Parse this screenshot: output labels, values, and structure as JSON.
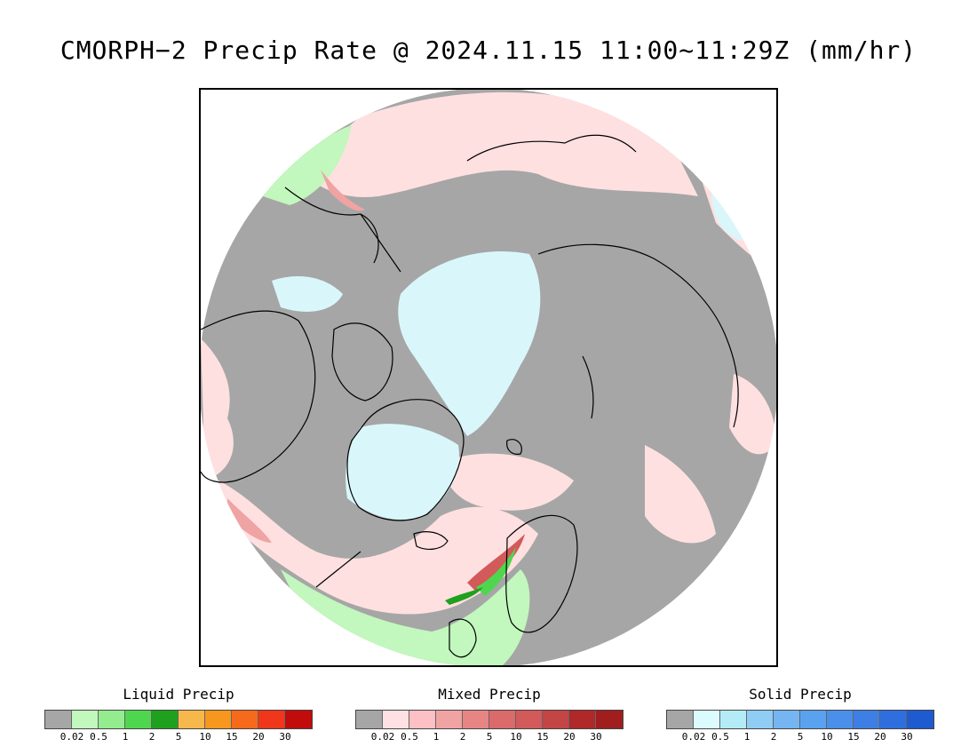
{
  "title": "CMORPH−2 Precip Rate @ 2024.11.15 11:00~11:29Z (mm/hr)",
  "map": {
    "projection": "polar stereographic (north)",
    "background_color": "#a6a6a6",
    "coastline_color": "#000000",
    "region_colors": {
      "light_mixed": "#ffe0e0",
      "light_solid": "#d9f7fb",
      "light_liquid": "#c2f7bd",
      "mid_mixed": "#f0a3a3",
      "strong_mixed": "#d25a5a",
      "mid_liquid": "#4fd64f",
      "strong_liquid": "#1fa11f"
    }
  },
  "legends": [
    {
      "title": "Liquid Precip",
      "colors": [
        "#a6a6a6",
        "#c2f7bd",
        "#93ec8e",
        "#4fd64f",
        "#1fa11f",
        "#f7b84b",
        "#f7971d",
        "#f76a1b",
        "#f0361b",
        "#c20c0c"
      ],
      "labels": [
        "0.02",
        "0.5",
        "1",
        "2",
        "5",
        "10",
        "15",
        "20",
        "30"
      ]
    },
    {
      "title": "Mixed Precip",
      "colors": [
        "#a6a6a6",
        "#ffe0e3",
        "#fdc0c4",
        "#f0a3a3",
        "#e78585",
        "#db6a6a",
        "#d25a5a",
        "#c44545",
        "#b02828",
        "#a01e1e"
      ],
      "labels": [
        "0.02",
        "0.5",
        "1",
        "2",
        "5",
        "10",
        "15",
        "20",
        "30"
      ]
    },
    {
      "title": "Solid Precip",
      "colors": [
        "#a6a6a6",
        "#dcfbff",
        "#b3ecf7",
        "#8fcdf5",
        "#74b5f2",
        "#5aa1ef",
        "#4a8fea",
        "#3d7fe4",
        "#2e6ede",
        "#1f5bd0"
      ],
      "labels": [
        "0.02",
        "0.5",
        "1",
        "2",
        "5",
        "10",
        "15",
        "20",
        "30"
      ]
    }
  ]
}
